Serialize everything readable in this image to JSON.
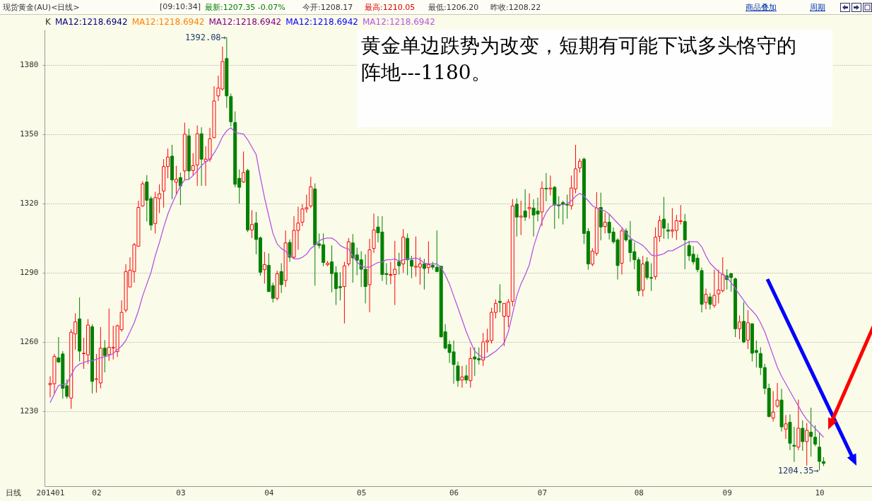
{
  "chart_data": {
    "type": "candlestick",
    "annotations": [
      "现货黄金(AU)<日线>",
      "[09:10:34]",
      "最新:1207.35 -0.07%",
      "今开:1208.17",
      "最高:1210.05",
      "最低:1206.20",
      "昨收:1208.22",
      "商品叠加",
      "周期",
      "K",
      "MA12:1218.6942",
      "MA12:1218.6942",
      "MA12:1218.6942",
      "MA12:1218.6942",
      "黄金单边跌势为改变，短期有可能下试多头恪守的阵地---1180。",
      "日线",
      "1392.08→",
      "1204.35→"
    ],
    "categories": [
      "201401",
      null,
      null,
      null,
      null,
      null,
      null,
      null,
      null,
      null,
      null,
      "02",
      null,
      null,
      null,
      null,
      null,
      null,
      null,
      null,
      null,
      null,
      null,
      null,
      null,
      null,
      null,
      null,
      null,
      null,
      null,
      "03",
      null,
      null,
      null,
      null,
      null,
      null,
      null,
      null,
      null,
      null,
      null,
      null,
      null,
      null,
      null,
      null,
      null,
      null,
      null,
      null,
      "04",
      null,
      null,
      null,
      null,
      null,
      null,
      null,
      null,
      null,
      null,
      null,
      null,
      null,
      null,
      null,
      null,
      null,
      null,
      null,
      null,
      null,
      "05",
      null,
      null,
      null,
      null,
      null,
      null,
      null,
      null,
      null,
      null,
      null,
      null,
      null,
      null,
      null,
      null,
      null,
      null,
      null,
      null,
      null,
      "06",
      null,
      null,
      null,
      null,
      null,
      null,
      null,
      null,
      null,
      null,
      null,
      null,
      null,
      null,
      null,
      null,
      null,
      null,
      null,
      null,
      "07",
      null,
      null,
      null,
      null,
      null,
      null,
      null,
      null,
      null,
      null,
      null,
      null,
      null,
      null,
      null,
      null,
      null,
      null,
      null,
      null,
      null,
      null,
      "08",
      null,
      null,
      null,
      null,
      null,
      null,
      null,
      null,
      null,
      null,
      null,
      null,
      null,
      null,
      null,
      null,
      null,
      null,
      null,
      null,
      "09",
      null,
      null,
      null,
      null,
      null,
      null,
      null,
      null,
      null,
      null,
      null,
      null,
      null,
      null,
      null,
      null,
      null,
      null,
      null,
      null,
      null,
      "10",
      null
    ],
    "ohlc": [
      [
        1241.5,
        1245.1,
        1236,
        1242
      ],
      [
        1241.9,
        1254.8,
        1237.6,
        1253.7
      ],
      [
        1253.1,
        1262.1,
        1250.9,
        1251.3
      ],
      [
        1254.8,
        1256,
        1235.4,
        1239.9
      ],
      [
        1241,
        1243.8,
        1235.4,
        1236.4
      ],
      [
        1235.7,
        1265.5,
        1231,
        1264.2
      ],
      [
        1263.5,
        1272.4,
        1256.7,
        1268.7
      ],
      [
        1270,
        1279.3,
        1251.5,
        1256
      ],
      [
        1254.9,
        1261.8,
        1248.3,
        1255.1
      ],
      [
        1254.4,
        1269.9,
        1250.5,
        1267.3
      ],
      [
        1266.6,
        1267.7,
        1237.7,
        1242.9
      ],
      [
        1243.8,
        1254.8,
        1238,
        1244
      ],
      [
        1242.2,
        1266.4,
        1239.9,
        1257.3
      ],
      [
        1257.3,
        1260.8,
        1246.8,
        1254.1
      ],
      [
        1254.5,
        1274.5,
        1251.8,
        1257.7
      ],
      [
        1257.4,
        1267,
        1252.4,
        1257.6
      ],
      [
        1255.8,
        1267.5,
        1253.5,
        1267
      ],
      [
        1265.3,
        1278,
        1264.4,
        1272.8
      ],
      [
        1273.8,
        1293.7,
        1272.8,
        1290.5
      ],
      [
        1283.8,
        1296.7,
        1283.8,
        1291.1
      ],
      [
        1290.5,
        1302.9,
        1285.7,
        1302.1
      ],
      [
        1301.5,
        1321.2,
        1301.2,
        1318.3
      ],
      [
        1318.9,
        1329.6,
        1318.6,
        1328.5
      ],
      [
        1329.3,
        1332.3,
        1312.2,
        1321.4
      ],
      [
        1322.1,
        1323.1,
        1308.3,
        1310.6
      ],
      [
        1311.3,
        1325,
        1307,
        1322.5
      ],
      [
        1322.1,
        1328.3,
        1315.8,
        1324.2
      ],
      [
        1325.4,
        1339.2,
        1318.2,
        1336
      ],
      [
        1336,
        1343.8,
        1330.9,
        1340.1
      ],
      [
        1340.5,
        1345.4,
        1321.8,
        1330.2
      ],
      [
        1329.2,
        1336.3,
        1323.8,
        1330.5
      ],
      [
        1331.2,
        1333.4,
        1319.3,
        1327.6
      ],
      [
        1334.1,
        1355,
        1330.2,
        1350
      ],
      [
        1349.3,
        1352.4,
        1330.2,
        1334.1
      ],
      [
        1334.3,
        1341.8,
        1332.1,
        1336.4
      ],
      [
        1336.7,
        1353.8,
        1327.6,
        1350.2
      ],
      [
        1350.2,
        1353,
        1327.6,
        1339.2
      ],
      [
        1338.2,
        1344.8,
        1327.6,
        1339.2
      ],
      [
        1339.2,
        1352.8,
        1338,
        1348
      ],
      [
        1348.5,
        1370.8,
        1348.3,
        1364.4
      ],
      [
        1366.6,
        1375.4,
        1364.4,
        1370
      ],
      [
        1369.6,
        1388,
        1368.9,
        1381.5
      ],
      [
        1382.8,
        1392.08,
        1361.4,
        1366.6
      ],
      [
        1366.3,
        1367.6,
        1353.4,
        1355.4
      ],
      [
        1355.1,
        1359.9,
        1327,
        1328.3
      ],
      [
        1330.9,
        1334.7,
        1319.9,
        1327
      ],
      [
        1329.3,
        1342.5,
        1328.9,
        1333.4
      ],
      [
        1334.3,
        1335,
        1307.6,
        1308.5
      ],
      [
        1308.5,
        1317.1,
        1305,
        1310.9
      ],
      [
        1311.5,
        1316.3,
        1298,
        1304.4
      ],
      [
        1305.1,
        1305.7,
        1288.7,
        1290.2
      ],
      [
        1291.3,
        1299,
        1285.3,
        1293.5
      ],
      [
        1293.2,
        1298.4,
        1281.8,
        1281.8
      ],
      [
        1284.4,
        1285.7,
        1277.1,
        1278.9
      ],
      [
        1278.9,
        1290.9,
        1278,
        1289.6
      ],
      [
        1290.5,
        1294.1,
        1281.2,
        1284.8
      ],
      [
        1286.6,
        1308.3,
        1283.8,
        1302.9
      ],
      [
        1303.1,
        1304.4,
        1294.7,
        1296.7
      ],
      [
        1296.7,
        1314.5,
        1296,
        1308.3
      ],
      [
        1308.3,
        1318.6,
        1299.9,
        1311.5
      ],
      [
        1311.9,
        1319.7,
        1310.2,
        1317.6
      ],
      [
        1317.6,
        1323.8,
        1316,
        1318.2
      ],
      [
        1318.9,
        1331.5,
        1318,
        1327.2
      ],
      [
        1326.3,
        1328.7,
        1284.4,
        1302.1
      ],
      [
        1302.5,
        1307,
        1300.5,
        1301.8
      ],
      [
        1302.1,
        1307,
        1292.8,
        1294.4
      ],
      [
        1293.5,
        1295.1,
        1292.8,
        1294.1
      ],
      [
        1294.7,
        1301.8,
        1281.5,
        1289.6
      ],
      [
        1290,
        1292.8,
        1276,
        1283.1
      ],
      [
        1284,
        1290.2,
        1278,
        1283.5
      ],
      [
        1284,
        1294.7,
        1268,
        1293
      ],
      [
        1293.8,
        1305,
        1292.8,
        1303.4
      ],
      [
        1302.9,
        1306.7,
        1285.7,
        1296.4
      ],
      [
        1297.7,
        1300.8,
        1288.9,
        1295.4
      ],
      [
        1295.6,
        1299.3,
        1283.8,
        1291.5
      ],
      [
        1291.5,
        1298,
        1276.7,
        1284
      ],
      [
        1284.8,
        1304.7,
        1272.8,
        1299.9
      ],
      [
        1300.5,
        1315.6,
        1298.6,
        1308.5
      ],
      [
        1309.8,
        1314.5,
        1303.1,
        1307.3
      ],
      [
        1307.6,
        1314.5,
        1286.4,
        1289.2
      ],
      [
        1289.6,
        1294.1,
        1284.8,
        1289.2
      ],
      [
        1288.9,
        1294.7,
        1285,
        1289.2
      ],
      [
        1289.2,
        1303.8,
        1276,
        1291.5
      ],
      [
        1294.7,
        1298.6,
        1289.2,
        1293
      ],
      [
        1293.8,
        1308.9,
        1290,
        1305.4
      ],
      [
        1304.9,
        1307,
        1288.9,
        1295.6
      ],
      [
        1295.4,
        1297.3,
        1287.6,
        1292.8
      ],
      [
        1292.4,
        1305.7,
        1288.3,
        1292.8
      ],
      [
        1292.4,
        1296.7,
        1284.8,
        1293.8
      ],
      [
        1293.8,
        1296,
        1282.7,
        1291.8
      ],
      [
        1292.2,
        1303.6,
        1289.6,
        1293.5
      ],
      [
        1293.2,
        1294.7,
        1291.3,
        1292.4
      ],
      [
        1292.4,
        1308.3,
        1290.2,
        1290.5
      ],
      [
        1292.8,
        1292.8,
        1261.9,
        1262.2
      ],
      [
        1264.4,
        1267.7,
        1256.7,
        1257.3
      ],
      [
        1258.9,
        1260.6,
        1250.9,
        1255.4
      ],
      [
        1255.7,
        1260.6,
        1241.9,
        1250.2
      ],
      [
        1249.6,
        1251.5,
        1240.6,
        1243.2
      ],
      [
        1243.5,
        1249.6,
        1240.2,
        1244.8
      ],
      [
        1245.3,
        1250,
        1241.9,
        1243.5
      ],
      [
        1243.2,
        1257.7,
        1240.2,
        1252.8
      ],
      [
        1253.5,
        1257.6,
        1245.3,
        1252.6
      ],
      [
        1252.8,
        1257.6,
        1250.2,
        1252.2
      ],
      [
        1252.2,
        1263.9,
        1249.6,
        1260
      ],
      [
        1260,
        1265.7,
        1255.4,
        1260.6
      ],
      [
        1260.6,
        1274.8,
        1259.3,
        1272.8
      ],
      [
        1272.8,
        1278.4,
        1270.2,
        1276.7
      ],
      [
        1277.6,
        1285,
        1272.8,
        1277.1
      ],
      [
        1271.1,
        1276.7,
        1258.2,
        1276.7
      ],
      [
        1271.1,
        1278.6,
        1266.4,
        1277.3
      ],
      [
        1277.6,
        1321.9,
        1275.4,
        1318.9
      ],
      [
        1319.7,
        1322.2,
        1305.7,
        1314.1
      ],
      [
        1314.1,
        1321.2,
        1306.3,
        1314.5
      ],
      [
        1316.7,
        1326.2,
        1312.4,
        1314.1
      ],
      [
        1317.7,
        1324.4,
        1313.4,
        1318.3
      ],
      [
        1318,
        1321.8,
        1305.7,
        1315
      ],
      [
        1316.7,
        1322.5,
        1312.2,
        1315.4
      ],
      [
        1316.3,
        1329.6,
        1310.2,
        1326.6
      ],
      [
        1326.6,
        1333.2,
        1320.9,
        1326.3
      ],
      [
        1326.3,
        1332.1,
        1323.5,
        1326.7
      ],
      [
        1327,
        1327.6,
        1309,
        1319.3
      ],
      [
        1319.5,
        1323.1,
        1313.4,
        1319
      ],
      [
        1320.4,
        1321.2,
        1310.9,
        1319.6
      ],
      [
        1319.6,
        1323.8,
        1313.4,
        1319.3
      ],
      [
        1319,
        1332.1,
        1317.3,
        1326.7
      ],
      [
        1326.3,
        1345.4,
        1324.4,
        1335
      ],
      [
        1335.4,
        1339.5,
        1333.4,
        1338.3
      ],
      [
        1339.2,
        1339.9,
        1302.5,
        1307
      ],
      [
        1307.9,
        1309.3,
        1291.3,
        1293.8
      ],
      [
        1293.7,
        1300.6,
        1292.8,
        1299.3
      ],
      [
        1298.4,
        1324.9,
        1297.3,
        1318
      ],
      [
        1318.3,
        1324.7,
        1304,
        1309.8
      ],
      [
        1310,
        1316,
        1307,
        1311.9
      ],
      [
        1311.9,
        1315.4,
        1304.4,
        1307.3
      ],
      [
        1307.6,
        1309.6,
        1302.5,
        1303.4
      ],
      [
        1304.2,
        1305,
        1287,
        1293.1
      ],
      [
        1294.1,
        1309.3,
        1289.2,
        1308.1
      ],
      [
        1308.1,
        1309.3,
        1303.4,
        1304.2
      ],
      [
        1304.2,
        1312.4,
        1294.7,
        1298.7
      ],
      [
        1299.1,
        1303.1,
        1291.5,
        1295.6
      ],
      [
        1295.6,
        1296.7,
        1279.9,
        1282.1
      ],
      [
        1282.5,
        1297.3,
        1279.7,
        1293.8
      ],
      [
        1294.7,
        1296.7,
        1287,
        1287.9
      ],
      [
        1287.9,
        1294.1,
        1282.1,
        1287.6
      ],
      [
        1288.3,
        1309.6,
        1287,
        1305.4
      ],
      [
        1305.7,
        1314.7,
        1303.4,
        1312.6
      ],
      [
        1313.2,
        1322.8,
        1304.7,
        1309.3
      ],
      [
        1308.5,
        1311.5,
        1304.7,
        1308
      ],
      [
        1308,
        1318,
        1305.1,
        1308.5
      ],
      [
        1308.3,
        1315,
        1304.2,
        1312.5
      ],
      [
        1312.2,
        1319.3,
        1310.9,
        1312.5
      ],
      [
        1312.2,
        1315.4,
        1291.5,
        1304.2
      ],
      [
        1301.8,
        1303.8,
        1295.1,
        1297.3
      ],
      [
        1298,
        1301.5,
        1293.5,
        1294.7
      ],
      [
        1296.3,
        1298,
        1290.2,
        1291.3
      ],
      [
        1290.9,
        1292.2,
        1272.8,
        1276.3
      ],
      [
        1277.1,
        1283.1,
        1274.1,
        1280.6
      ],
      [
        1279.5,
        1281.2,
        1274.1,
        1276.3
      ],
      [
        1275.8,
        1291.3,
        1274.8,
        1280.2
      ],
      [
        1280.8,
        1291.3,
        1276.7,
        1282.5
      ],
      [
        1282.2,
        1296.7,
        1281.5,
        1289.2
      ],
      [
        1288.7,
        1291.5,
        1282.7,
        1287
      ],
      [
        1289.6,
        1289.9,
        1281.8,
        1287.9
      ],
      [
        1287.3,
        1287.9,
        1262.1,
        1265.7
      ],
      [
        1265.7,
        1271.5,
        1261.2,
        1268.6
      ],
      [
        1268.9,
        1277.3,
        1259.5,
        1260
      ],
      [
        1260.8,
        1273.7,
        1256.9,
        1268.3
      ],
      [
        1267.9,
        1267.9,
        1251.5,
        1255.1
      ],
      [
        1256.3,
        1260.6,
        1248.9,
        1255.4
      ],
      [
        1255,
        1257.7,
        1245.7,
        1248.9
      ],
      [
        1248.9,
        1250.5,
        1237.3,
        1239.9
      ],
      [
        1239.9,
        1241.9,
        1227.3,
        1227.7
      ],
      [
        1227,
        1238.7,
        1225.5,
        1229.6
      ],
      [
        1232.2,
        1242.2,
        1231.5,
        1234.8
      ],
      [
        1234.8,
        1239.7,
        1221.2,
        1223.2
      ],
      [
        1222.2,
        1228.3,
        1218,
        1224.5
      ],
      [
        1225.2,
        1228.6,
        1213.1,
        1216.1
      ],
      [
        1215.2,
        1223.2,
        1208,
        1214.8
      ],
      [
        1214.4,
        1235,
        1213.1,
        1222.6
      ],
      [
        1222.6,
        1226,
        1212.8,
        1216.8
      ],
      [
        1216.8,
        1224.8,
        1206.4,
        1221.7
      ],
      [
        1220.9,
        1231.5,
        1210.3,
        1219
      ],
      [
        1218.7,
        1223.9,
        1214.8,
        1215.7
      ],
      [
        1214.4,
        1220.6,
        1204.35,
        1208.22
      ],
      [
        1208.17,
        1210.05,
        1206.2,
        1207.35
      ]
    ],
    "series": [
      {
        "name": "MA12:1218.6942",
        "type": "line",
        "color": "#b455e8",
        "values": [
          1233.7,
          1237.5,
          1241.2,
          1241.5,
          1241.9,
          1245.7,
          1249,
          1250.5,
          1251,
          1251.8,
          1251.8,
          1252.5,
          1253.1,
          1253.6,
          1254.1,
          1255,
          1256.7,
          1258.2,
          1260.6,
          1264.4,
          1268.3,
          1273.5,
          1279.9,
          1285.1,
          1290.2,
          1297.3,
          1303.1,
          1309.6,
          1315.4,
          1319.9,
          1323.8,
          1327.6,
          1330.2,
          1330.5,
          1332.1,
          1334.1,
          1336.4,
          1338,
          1339.2,
          1341.8,
          1345,
          1348.9,
          1351.5,
          1352.8,
          1350.8,
          1350.4,
          1350.1,
          1347.6,
          1344.4,
          1341.2,
          1331.5,
          1322.5,
          1314.7,
          1307,
          1302.5,
          1300.5,
          1299.3,
          1297.3,
          1296,
          1296,
          1296.7,
          1298,
          1300.5,
          1301.8,
          1303.8,
          1304.7,
          1305,
          1305,
          1303.8,
          1301.8,
          1300.8,
          1300.3,
          1297.3,
          1294.7,
          1292.8,
          1292.4,
          1292.4,
          1293.5,
          1294.4,
          1294.7,
          1295.6,
          1295.6,
          1296,
          1295,
          1295.6,
          1296,
          1296,
          1296.4,
          1295.6,
          1294.1,
          1293.8,
          1293.8,
          1293.8,
          1292.2,
          1289,
          1285.1,
          1279.9,
          1274.8,
          1269.6,
          1264.4,
          1260,
          1256,
          1254.4,
          1253.1,
          1253.5,
          1254.8,
          1256,
          1257.7,
          1259.5,
          1264.4,
          1272.2,
          1279.9,
          1285.1,
          1289,
          1293.5,
          1301.2,
          1307,
          1312.2,
          1316.1,
          1318.6,
          1319.5,
          1319.5,
          1319.5,
          1319.9,
          1321.2,
          1323.1,
          1324.4,
          1323.1,
          1321.2,
          1319,
          1318,
          1317.3,
          1316.7,
          1315.4,
          1313.4,
          1311.5,
          1309.6,
          1307.3,
          1305,
          1303.8,
          1302.9,
          1301.8,
          1299.9,
          1297.7,
          1297.3,
          1297.7,
          1298.2,
          1299.5,
          1299.5,
          1300.5,
          1301.5,
          1302.5,
          1303.4,
          1303.4,
          1303.4,
          1301.2,
          1297.3,
          1294.1,
          1292.2,
          1290.5,
          1289.2,
          1287.9,
          1285.7,
          1283.1,
          1280.5,
          1278,
          1275.4,
          1273.5,
          1271.5,
          1268.3,
          1264.4,
          1259.3,
          1254.1,
          1249,
          1245.1,
          1241.9,
          1238.6,
          1235.4,
          1232.2,
          1229,
          1226.4,
          1224.4,
          1222.5,
          1220.6,
          1218.7
        ]
      }
    ],
    "ylim": [
      1197.5,
      1395.3
    ],
    "yticks": [
      1230,
      1260,
      1290,
      1320,
      1350,
      1380
    ],
    "grid": "y",
    "legend": "top left"
  }
}
